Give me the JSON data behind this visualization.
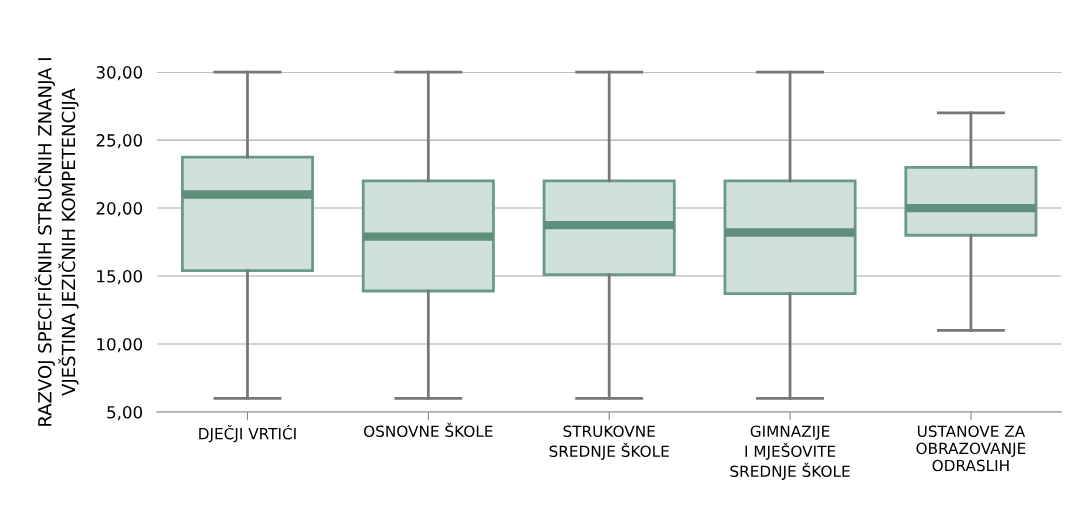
{
  "chart_data": {
    "type": "box",
    "ylabel": "RAZVOJ SPECIFIČNIH STRUČNIH ZNANJA I\nVJEŠTINA JEZIČNIH KOMPETENCIJA",
    "categories": [
      "DJEČJI VRTIĆI",
      "OSNOVNE ŠKOLE",
      "STRUKOVNE\nSREDNJE ŠKOLE",
      "GIMNAZIJE\nI MJEŠOVITE\nSREDNJE ŠKOLE",
      "USTANOVE ZA\nOBRAZOVANJE\nODRASLIH"
    ],
    "boxes": [
      {
        "low": 6,
        "q1": 15.4,
        "median": 21.0,
        "q3": 23.75,
        "high": 30
      },
      {
        "low": 6,
        "q1": 13.9,
        "median": 17.9,
        "q3": 22.0,
        "high": 30
      },
      {
        "low": 6,
        "q1": 15.1,
        "median": 18.75,
        "q3": 22.0,
        "high": 30
      },
      {
        "low": 6,
        "q1": 13.7,
        "median": 18.2,
        "q3": 22.0,
        "high": 30
      },
      {
        "low": 11,
        "q1": 18.0,
        "median": 20.0,
        "q3": 23.0,
        "high": 27
      }
    ],
    "color": "#cfe0dd",
    "ylim": [
      5,
      30
    ],
    "yticks": [
      {
        "value": 5,
        "label": "5,00"
      },
      {
        "value": 10,
        "label": "10,00"
      },
      {
        "value": 15,
        "label": "15,00"
      },
      {
        "value": 20,
        "label": "20,00"
      },
      {
        "value": 25,
        "label": "25,00"
      },
      {
        "value": 30,
        "label": "30,00"
      }
    ],
    "grid": "y"
  }
}
